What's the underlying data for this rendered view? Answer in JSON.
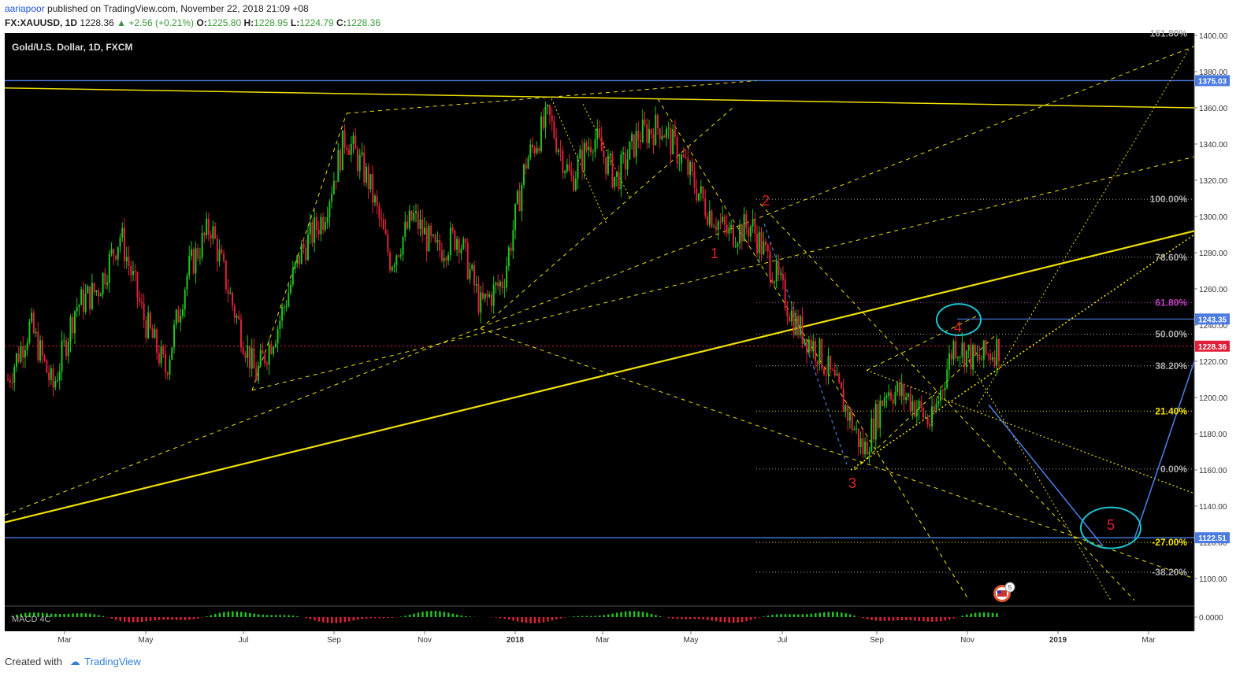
{
  "header": {
    "user": "aariapoor",
    "published": "published on TradingView.com, November 22, 2018 21:09 +08",
    "symbol": "FX:XAUUSD, 1D",
    "last": "1228.36",
    "change": "+2.56 (+0.21%)",
    "o_label": "O:",
    "o": "1225.80",
    "h_label": "H:",
    "h": "1228.95",
    "l_label": "L:",
    "l": "1224.79",
    "c_label": "C:",
    "c": "1228.36"
  },
  "footer": {
    "created": "Created with",
    "brand": "TradingView"
  },
  "colors": {
    "bg": "#000000",
    "up": "#22c322",
    "down": "#e0203a",
    "yellow": "#f0e000",
    "blue": "#4a7be0",
    "cyan": "#19c4d2"
  },
  "chart_data": {
    "type": "candlestick",
    "title": "Gold/U.S. Dollar, 1D, FXCM",
    "y_ticks": [
      1100,
      1120,
      1140,
      1160,
      1180,
      1200,
      1220,
      1240,
      1260,
      1280,
      1300,
      1320,
      1340,
      1360,
      1380,
      1400
    ],
    "y_tick_labels": [
      "1100.00",
      "1120.00",
      "1140.00",
      "1160.00",
      "1180.00",
      "1200.00",
      "1220.00",
      "1240.00",
      "1260.00",
      "1280.00",
      "1300.00",
      "1320.00",
      "1340.00",
      "1360.00",
      "1380.00",
      "1400.00"
    ],
    "x_labels": [
      "Mar",
      "May",
      "Jul",
      "Sep",
      "Nov",
      "2018",
      "Mar",
      "May",
      "Jul",
      "Sep",
      "Nov",
      "2019",
      "Mar"
    ],
    "price_badges": [
      {
        "label": "1375.03",
        "value": 1375.03,
        "color": "#4a7be0"
      },
      {
        "label": "1243.35",
        "value": 1243.35,
        "color": "#4a7be0"
      },
      {
        "label": "1228.36",
        "value": 1228.36,
        "color": "#e0203a"
      },
      {
        "label": "1122.51",
        "value": 1122.51,
        "color": "#4a7be0"
      }
    ],
    "fib_levels": [
      {
        "label": "161.80%",
        "value": 1401
      },
      {
        "label": "100.00%",
        "value": 1309.5
      },
      {
        "label": "78.60%",
        "value": 1277.5
      },
      {
        "label": "61.80%",
        "value": 1252.5,
        "color": "#c040c0"
      },
      {
        "label": "50.00%",
        "value": 1235
      },
      {
        "label": "38.20%",
        "value": 1217.5
      },
      {
        "label": "21.40%",
        "value": 1192.5,
        "color": "#f0e000"
      },
      {
        "label": "0.00%",
        "value": 1160.5
      },
      {
        "label": "-27.00%",
        "value": 1120,
        "color": "#f0e000"
      },
      {
        "label": "-38.20%",
        "value": 1103.5
      }
    ],
    "wave_labels": [
      "1",
      "2",
      "3",
      "4",
      "5"
    ],
    "indicator": "MACD 4C",
    "macd_tick": "0.0000",
    "flag_count": "5",
    "series": [
      {
        "date": "2017-02",
        "close": 1210
      },
      {
        "date": "2017-02",
        "close": 1240
      },
      {
        "date": "2017-03",
        "close": 1205
      },
      {
        "date": "2017-03",
        "close": 1250
      },
      {
        "date": "2017-04",
        "close": 1260
      },
      {
        "date": "2017-04",
        "close": 1290
      },
      {
        "date": "2017-05",
        "close": 1245
      },
      {
        "date": "2017-05",
        "close": 1215
      },
      {
        "date": "2017-06",
        "close": 1270
      },
      {
        "date": "2017-06",
        "close": 1295
      },
      {
        "date": "2017-06",
        "close": 1250
      },
      {
        "date": "2017-07",
        "close": 1212
      },
      {
        "date": "2017-07",
        "close": 1240
      },
      {
        "date": "2017-08",
        "close": 1280
      },
      {
        "date": "2017-08",
        "close": 1300
      },
      {
        "date": "2017-09",
        "close": 1345
      },
      {
        "date": "2017-09",
        "close": 1320
      },
      {
        "date": "2017-10",
        "close": 1275
      },
      {
        "date": "2017-10",
        "close": 1300
      },
      {
        "date": "2017-11",
        "close": 1280
      },
      {
        "date": "2017-11",
        "close": 1290
      },
      {
        "date": "2017-12",
        "close": 1250
      },
      {
        "date": "2017-12",
        "close": 1265
      },
      {
        "date": "2018-01",
        "close": 1330
      },
      {
        "date": "2018-01",
        "close": 1355
      },
      {
        "date": "2018-02",
        "close": 1320
      },
      {
        "date": "2018-02",
        "close": 1345
      },
      {
        "date": "2018-03",
        "close": 1320
      },
      {
        "date": "2018-03",
        "close": 1345
      },
      {
        "date": "2018-04",
        "close": 1350
      },
      {
        "date": "2018-04",
        "close": 1330
      },
      {
        "date": "2018-05",
        "close": 1305
      },
      {
        "date": "2018-05",
        "close": 1290
      },
      {
        "date": "2018-06",
        "close": 1295
      },
      {
        "date": "2018-06",
        "close": 1270
      },
      {
        "date": "2018-07",
        "close": 1240
      },
      {
        "date": "2018-07",
        "close": 1225
      },
      {
        "date": "2018-08",
        "close": 1200
      },
      {
        "date": "2018-08",
        "close": 1170
      },
      {
        "date": "2018-09",
        "close": 1205
      },
      {
        "date": "2018-09",
        "close": 1200
      },
      {
        "date": "2018-10",
        "close": 1185
      },
      {
        "date": "2018-10",
        "close": 1230
      },
      {
        "date": "2018-11",
        "close": 1220
      },
      {
        "date": "2018-11",
        "close": 1228
      }
    ]
  }
}
